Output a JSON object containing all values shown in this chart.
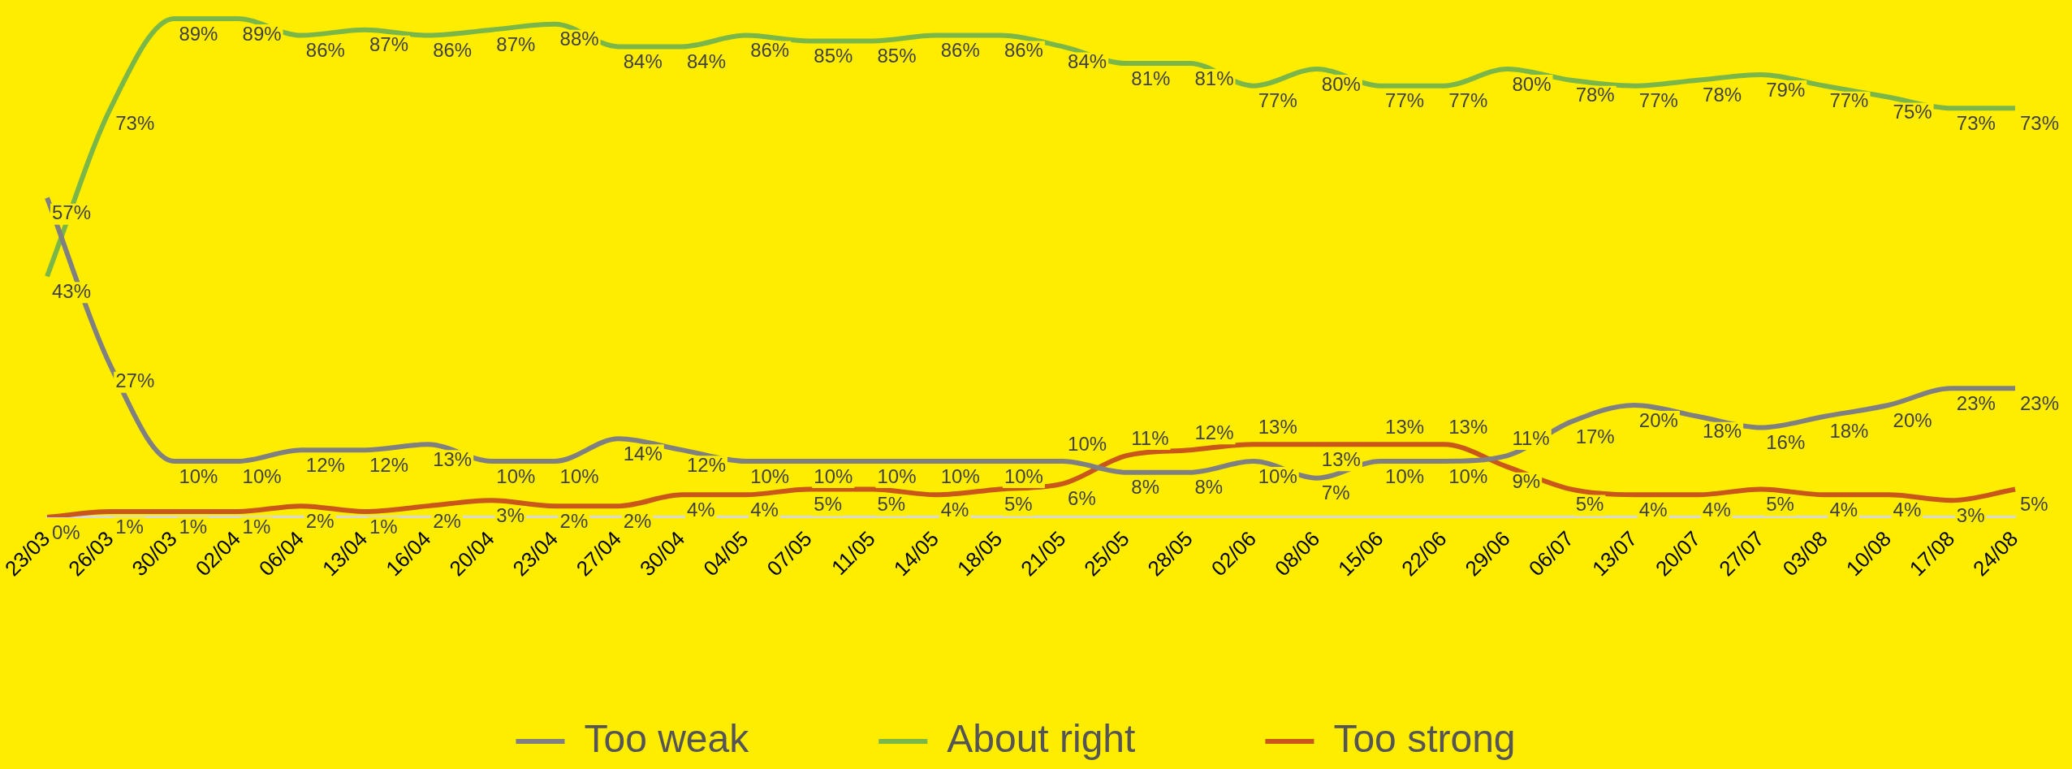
{
  "chart_data": {
    "type": "line",
    "categories": [
      "23/03",
      "26/03",
      "30/03",
      "02/04",
      "06/04",
      "13/04",
      "16/04",
      "20/04",
      "23/04",
      "27/04",
      "30/04",
      "04/05",
      "07/05",
      "11/05",
      "14/05",
      "18/05",
      "21/05",
      "25/05",
      "28/05",
      "02/06",
      "08/06",
      "15/06",
      "22/06",
      "29/06",
      "06/07",
      "13/07",
      "20/07",
      "27/07",
      "03/08",
      "10/08",
      "17/08",
      "24/08"
    ],
    "legend": "bottom",
    "marker": "none",
    "line_style": "solid",
    "grid": false,
    "series": [
      {
        "name": "Too weak",
        "color": "#808080",
        "values": [
          57,
          27,
          10,
          10,
          12,
          12,
          13,
          10,
          10,
          14,
          12,
          10,
          10,
          10,
          10,
          10,
          10,
          8,
          8,
          10,
          7,
          10,
          10,
          11,
          17,
          20,
          18,
          16,
          18,
          20,
          23,
          23
        ],
        "value_labels": [
          "57%",
          "27%",
          "10%",
          "10%",
          "12%",
          "12%",
          "13%",
          "10%",
          "10%",
          "14%",
          "12%",
          "10%",
          "10%",
          "10%",
          "10%",
          "10%",
          "10%",
          "8%",
          "8%",
          "10%",
          "7%",
          "10%",
          "10%",
          "11%",
          "17%",
          "20%",
          "18%",
          "16%",
          "18%",
          "20%",
          "23%",
          "23%"
        ]
      },
      {
        "name": "About right",
        "color": "#7ab648",
        "values": [
          43,
          73,
          89,
          89,
          86,
          87,
          86,
          87,
          88,
          84,
          84,
          86,
          85,
          85,
          86,
          86,
          84,
          81,
          81,
          77,
          80,
          77,
          77,
          80,
          78,
          77,
          78,
          79,
          77,
          75,
          73,
          73
        ],
        "value_labels": [
          "43%",
          "73%",
          "89%",
          "89%",
          "86%",
          "87%",
          "86%",
          "87%",
          "88%",
          "84%",
          "84%",
          "86%",
          "85%",
          "85%",
          "86%",
          "86%",
          "84%",
          "81%",
          "81%",
          "77%",
          "80%",
          "77%",
          "77%",
          "80%",
          "78%",
          "77%",
          "78%",
          "79%",
          "77%",
          "75%",
          "73%",
          "73%"
        ]
      },
      {
        "name": "Too strong",
        "color": "#c9571a",
        "values": [
          0,
          1,
          1,
          1,
          2,
          1,
          2,
          3,
          2,
          2,
          4,
          4,
          5,
          5,
          4,
          5,
          6,
          11,
          12,
          13,
          13,
          13,
          13,
          9,
          5,
          4,
          4,
          5,
          4,
          4,
          3,
          5
        ],
        "value_labels": [
          "0%",
          "1%",
          "1%",
          "1%",
          "2%",
          "1%",
          "2%",
          "3%",
          "2%",
          "2%",
          "4%",
          "4%",
          "5%",
          "5%",
          "4%",
          "5%",
          "6%",
          "11%",
          "12%",
          "13%",
          "13%",
          "13%",
          "13%",
          "9%",
          "5%",
          "4%",
          "4%",
          "5%",
          "4%",
          "4%",
          "3%",
          "5%"
        ]
      }
    ]
  }
}
